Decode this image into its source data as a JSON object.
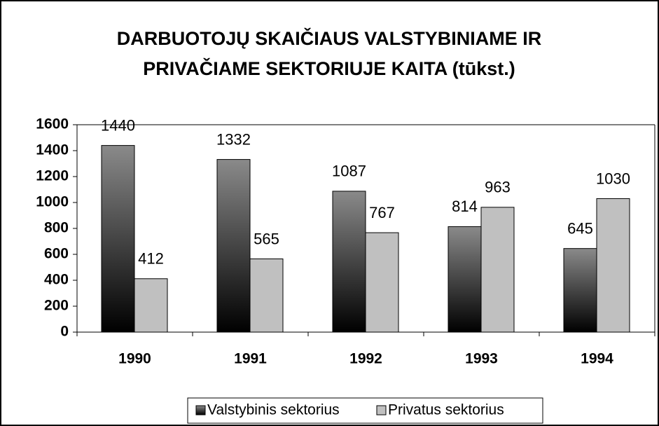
{
  "chart_data": {
    "type": "bar",
    "title": [
      "DARBUOTOJŲ SKAIČIAUS VALSTYBINIAME IR",
      "PRIVAČIAME SEKTORIUJE KAITA (tūkst.)"
    ],
    "categories": [
      "1990",
      "1991",
      "1992",
      "1993",
      "1994"
    ],
    "series": [
      {
        "name": "Valstybinis sektorius",
        "color": "#8a8a8a",
        "values": [
          1440,
          1332,
          1087,
          814,
          645
        ]
      },
      {
        "name": "Privatus sektorius",
        "color": "#c0c0c0",
        "values": [
          412,
          565,
          767,
          963,
          1030
        ]
      }
    ],
    "ylim": [
      0,
      1600
    ],
    "yticks": [
      0,
      200,
      400,
      600,
      800,
      1000,
      1200,
      1400,
      1600
    ],
    "grid": false,
    "legend": "bottom"
  }
}
